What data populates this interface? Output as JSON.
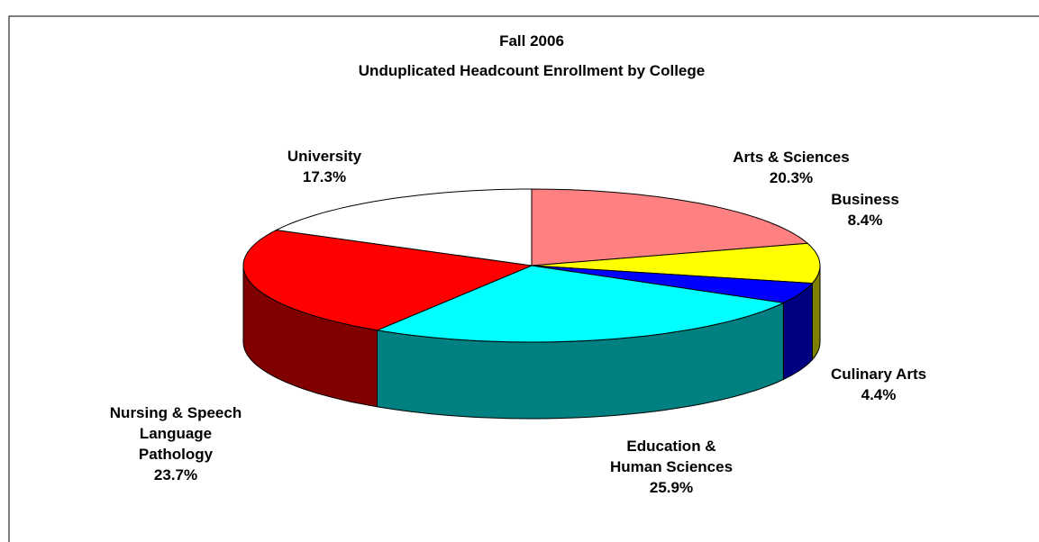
{
  "chart_data": {
    "type": "pie3d",
    "title": "Fall 2006",
    "subtitle": "Unduplicated Headcount Enrollment by College",
    "categories": [
      "Arts & Sciences",
      "Business",
      "Culinary Arts",
      "Education & Human Sciences",
      "Nursing & Speech Language Pathology",
      "University"
    ],
    "values": [
      20.3,
      8.4,
      4.4,
      25.9,
      23.7,
      17.3
    ],
    "value_labels": [
      "20.3%",
      "8.4%",
      "4.4%",
      "25.9%",
      "23.7%",
      "17.3%"
    ],
    "colors": [
      "#ff8080",
      "#ffff00",
      "#0000ff",
      "#00ffff",
      "#ff0000",
      "#ffffff"
    ]
  }
}
